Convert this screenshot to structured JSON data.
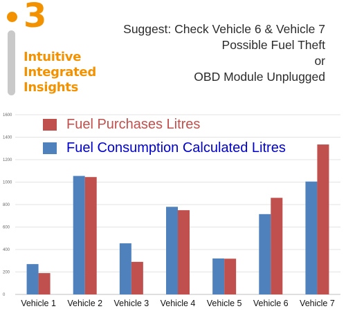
{
  "logo": {
    "numeral": "3",
    "line1": "Intuitive",
    "line2": "Integrated",
    "line3": "Insights"
  },
  "annotation": {
    "line1": "Suggest: Check Vehicle 6 & Vehicle 7",
    "line2": "Possible Fuel Theft",
    "line3": "or",
    "line4": "OBD Module Unplugged"
  },
  "legend": [
    {
      "label": "Fuel Purchases Litres",
      "color": "#c0504d"
    },
    {
      "label": "Fuel Consumption Calculated Litres",
      "color": "#4f81bd"
    }
  ],
  "legend_text_colors": [
    "#c0504d",
    "#0000cc"
  ],
  "chart_data": {
    "type": "bar",
    "categories": [
      "Vehicle 1",
      "Vehicle 2",
      "Vehicle 3",
      "Vehicle 4",
      "Vehicle 5",
      "Vehicle 6",
      "Vehicle 7"
    ],
    "series": [
      {
        "name": "Fuel Consumption Calculated Litres",
        "color": "#4f81bd",
        "values": [
          270,
          1055,
          455,
          780,
          320,
          715,
          1005
        ]
      },
      {
        "name": "Fuel Purchases Litres",
        "color": "#c0504d",
        "values": [
          190,
          1045,
          290,
          750,
          318,
          860,
          1335
        ]
      }
    ],
    "yticks": [
      "0",
      "200",
      "400",
      "600",
      "800",
      "1000",
      "1200",
      "1400",
      "1600"
    ],
    "ylim": [
      0,
      1600
    ],
    "grid": true,
    "title": "",
    "xlabel": "",
    "ylabel": ""
  }
}
